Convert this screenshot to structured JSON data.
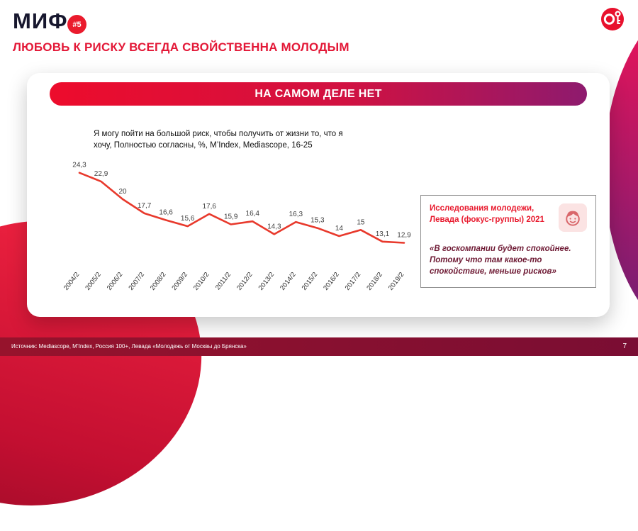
{
  "header": {
    "title": "МИФ",
    "badge": "#5",
    "subtitle": "ЛЮБОВЬ К РИСКУ ВСЕГДА СВОЙСТВЕННА МОЛОДЫМ"
  },
  "logo": {
    "name": "OMD"
  },
  "card": {
    "banner": "НА САМОМ ДЕЛЕ НЕТ"
  },
  "chart_data": {
    "type": "line",
    "title": "Я могу пойти на большой риск, чтобы получить от жизни то, что я хочу, Полностью согласны, %, M’Index, Mediascope, 16-25",
    "categories": [
      "2004/2",
      "2005/2",
      "2006/2",
      "2007/2",
      "2008/2",
      "2009/2",
      "2010/2",
      "2011/2",
      "2012/2",
      "2013/2",
      "2014/2",
      "2015/2",
      "2016/2",
      "2017/2",
      "2018/2",
      "2019/2"
    ],
    "values": [
      24.3,
      22.9,
      20,
      17.7,
      16.6,
      15.6,
      17.6,
      15.9,
      16.4,
      14.3,
      16.3,
      15.3,
      14,
      15,
      13.1,
      12.9
    ],
    "value_labels": [
      "24,3",
      "22,9",
      "20",
      "17,7",
      "16,6",
      "15,6",
      "17,6",
      "15,9",
      "16,4",
      "14,3",
      "16,3",
      "15,3",
      "14",
      "15",
      "13,1",
      "12,9"
    ],
    "line_color": "#e8392c",
    "ylim": [
      11,
      26
    ],
    "grid": false,
    "legend": "none"
  },
  "side_panel": {
    "title": "Исследования молодежи, Левада (фокус-группы) 2021",
    "quote": "«В госкомпании будет спокойнее. Потому что  там какое-то спокойствие, меньше рисков»"
  },
  "footer": {
    "source": "Источник: Mediascope, M’Index, Россия 100+, Левада «Молодежь от Москвы до Брянска»",
    "page": "7"
  },
  "colors": {
    "accent_red": "#e8192d",
    "banner_gradient_start": "#ed0c2c",
    "banner_gradient_end": "#8e1a6e",
    "footer_bg": "#7d0d2b",
    "line_red": "#e8392c"
  }
}
